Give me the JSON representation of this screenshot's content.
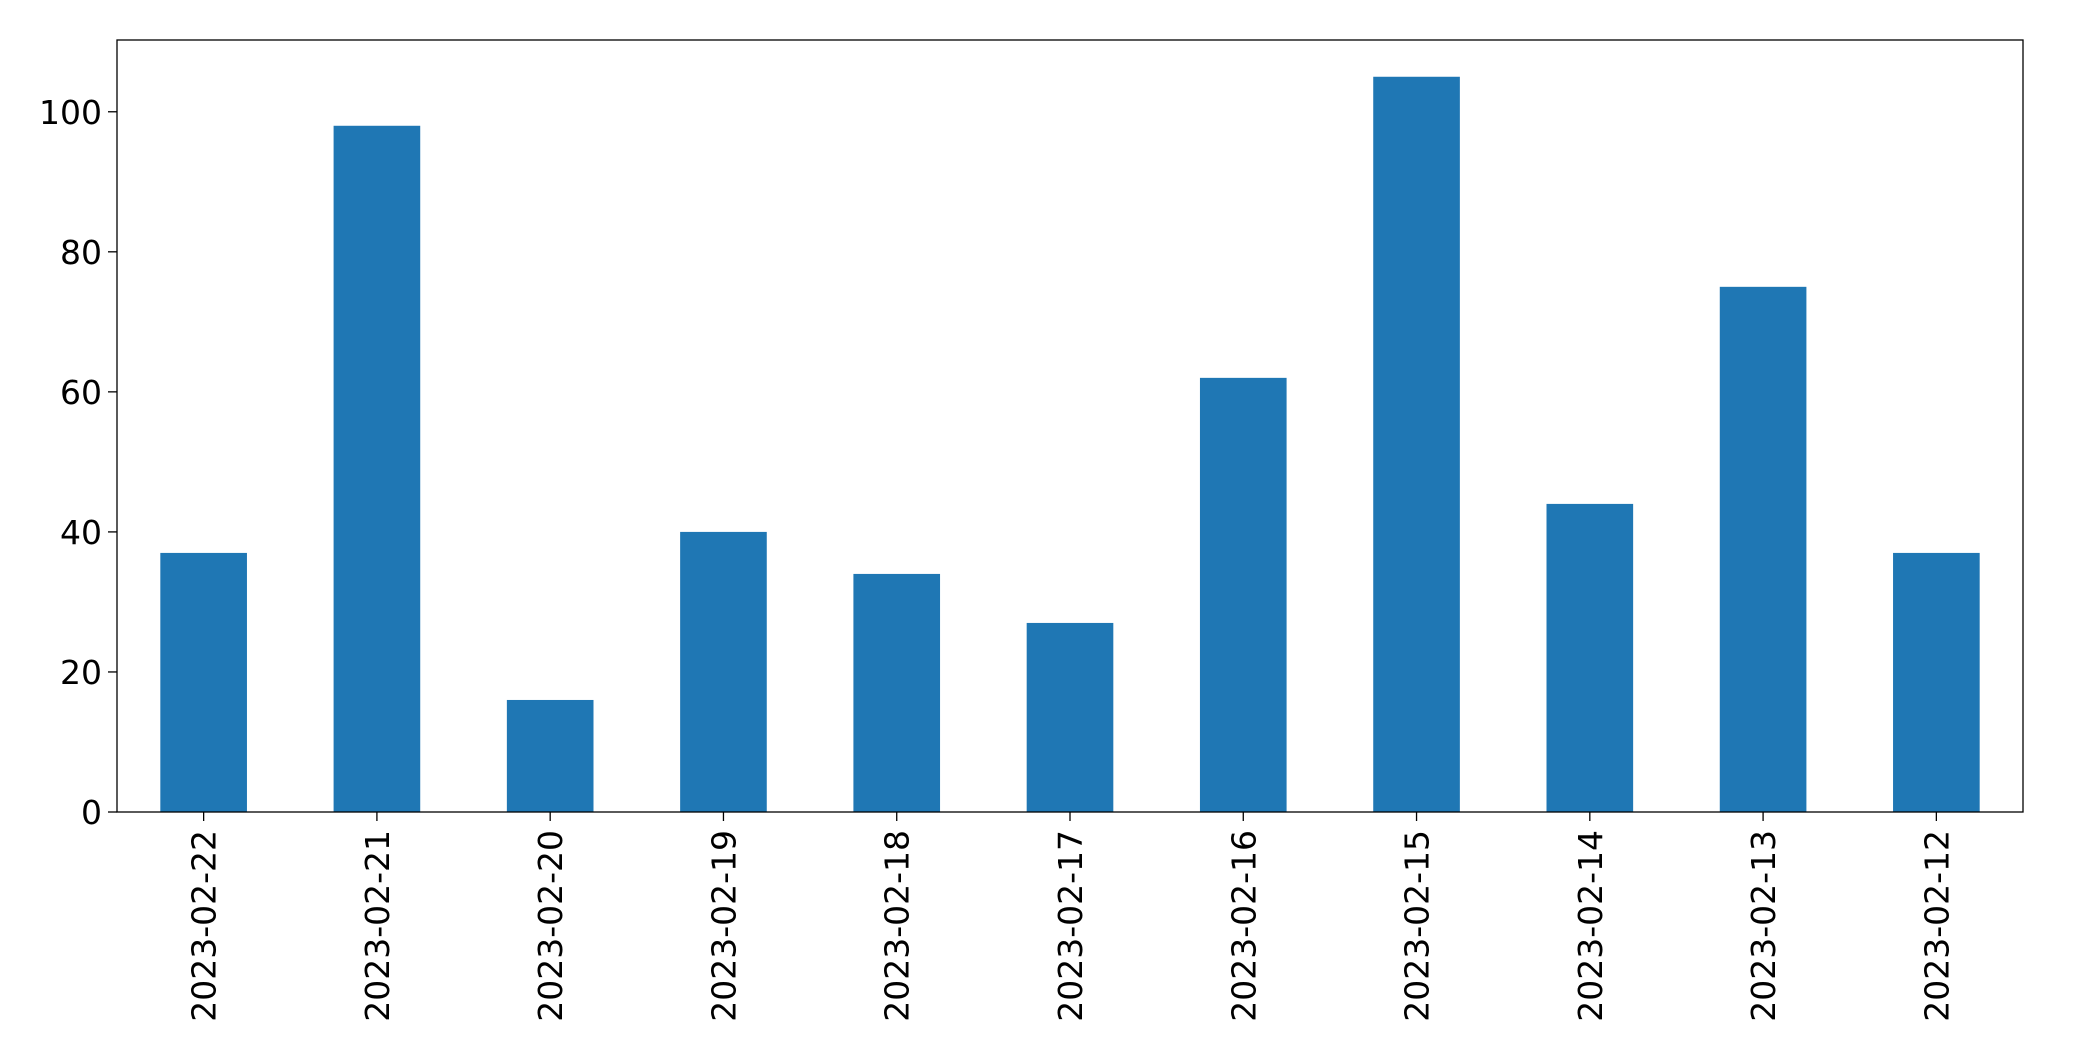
{
  "chart_data": {
    "type": "bar",
    "categories": [
      "2023-02-22",
      "2023-02-21",
      "2023-02-20",
      "2023-02-19",
      "2023-02-18",
      "2023-02-17",
      "2023-02-16",
      "2023-02-15",
      "2023-02-14",
      "2023-02-13",
      "2023-02-12"
    ],
    "values": [
      37,
      98,
      16,
      40,
      34,
      27,
      62,
      105,
      44,
      75,
      37
    ],
    "title": "",
    "xlabel": "",
    "ylabel": "",
    "ylim": [
      0,
      110.25
    ],
    "yticks": [
      "0",
      "20",
      "40",
      "60",
      "80",
      "100"
    ],
    "grid": false,
    "legend": "none",
    "bar_color": "#1f77b4"
  }
}
